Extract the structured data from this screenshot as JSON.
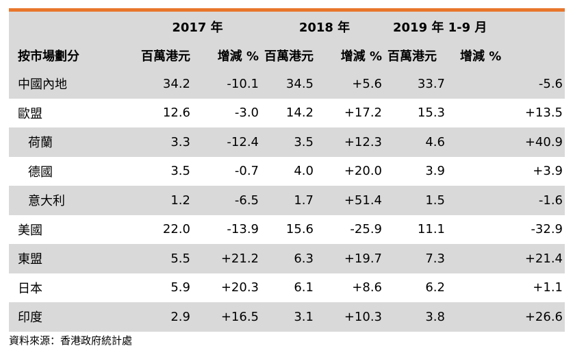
{
  "header": {
    "years": [
      "2017 年",
      "2018 年",
      "2019 年 1-9 月"
    ],
    "row_label": "按市場劃分",
    "col_value": "百萬港元",
    "col_change": "增減 %"
  },
  "rows": [
    {
      "label": "中國內地",
      "v2017": "34.2",
      "c2017": "-10.1",
      "v2018": "34.5",
      "c2018": "+5.6",
      "v2019": "33.7",
      "c2019": "-5.6"
    },
    {
      "label": "歐盟",
      "v2017": "12.6",
      "c2017": "-3.0",
      "v2018": "14.2",
      "c2018": "+17.2",
      "v2019": "15.3",
      "c2019": "+13.5"
    },
    {
      "label": "荷蘭",
      "v2017": "3.3",
      "c2017": "-12.4",
      "v2018": "3.5",
      "c2018": "+12.3",
      "v2019": "4.6",
      "c2019": "+40.9"
    },
    {
      "label": "德國",
      "v2017": "3.5",
      "c2017": "-0.7",
      "v2018": "4.0",
      "c2018": "+20.0",
      "v2019": "3.9",
      "c2019": "+3.9"
    },
    {
      "label": "意大利",
      "v2017": "1.2",
      "c2017": "-6.5",
      "v2018": "1.7",
      "c2018": "+51.4",
      "v2019": "1.5",
      "c2019": "-1.6"
    },
    {
      "label": "美國",
      "v2017": "22.0",
      "c2017": "-13.9",
      "v2018": "15.6",
      "c2018": "-25.9",
      "v2019": "11.1",
      "c2019": "-32.9"
    },
    {
      "label": "東盟",
      "v2017": "5.5",
      "c2017": "+21.2",
      "v2018": "6.3",
      "c2018": "+19.7",
      "v2019": "7.3",
      "c2019": "+21.4"
    },
    {
      "label": "日本",
      "v2017": "5.9",
      "c2017": "+20.3",
      "v2018": "6.1",
      "c2018": "+8.6",
      "v2019": "6.2",
      "c2019": "+1.1"
    },
    {
      "label": "印度",
      "v2017": "2.9",
      "c2017": "+16.5",
      "v2018": "3.1",
      "c2018": "+10.3",
      "v2019": "3.8",
      "c2019": "+26.6"
    }
  ],
  "source": "資料來源：香港政府統計處"
}
